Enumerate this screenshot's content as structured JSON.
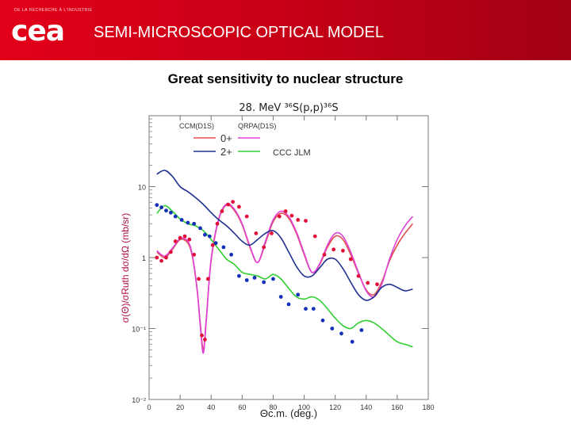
{
  "header": {
    "logo_tagline": "DE LA RECHERCHE À L'INDUSTRIE",
    "logo_text": "cea",
    "title": "SEMI-MICROSCOPIC OPTICAL MODEL"
  },
  "subtitle": "Great sensitivity to nuclear structure",
  "colors": {
    "header_red": "#e2001a",
    "ccm_0plus": "#e05050",
    "qrpa_0plus": "#e040d8",
    "ccm_2plus": "#203090",
    "qrpa_2plus": "#30d030",
    "data_0plus": "#e0103a",
    "data_2plus": "#1530b8"
  },
  "chart_data": {
    "type": "line",
    "title": "28. MeV ³⁶S(p,p)³⁶S",
    "xlabel": "Θc.m. (deg.)",
    "ylabel": "σ(Θ)/σRuth   dσ/dΩ (mb/sr)",
    "xlim": [
      0,
      180
    ],
    "ylim": [
      0.01,
      100
    ],
    "yscale": "log",
    "x_ticks": [
      "0",
      "20",
      "40",
      "60",
      "80",
      "100",
      "120",
      "140",
      "160",
      "180"
    ],
    "y_ticks": [
      {
        "label": "10",
        "value": 10
      },
      {
        "label": "1",
        "value": 1
      },
      {
        "label": "10⁻¹",
        "value": 0.1
      },
      {
        "label": "10⁻²",
        "value": 0.01
      }
    ],
    "legend": {
      "header_left": "CCM(D1S)",
      "header_right": "QRPA(D1S)",
      "row1": "0+",
      "row2": "2+",
      "right_label": "CCC JLM"
    },
    "series": [
      {
        "name": "0+ CCM(D1S)",
        "color": "#e05050",
        "x": [
          5,
          10,
          15,
          20,
          25,
          28,
          31,
          33,
          35,
          37,
          40,
          45,
          50,
          55,
          60,
          65,
          70,
          75,
          80,
          85,
          90,
          95,
          100,
          105,
          110,
          115,
          120,
          125,
          130,
          135,
          140,
          145,
          150,
          155,
          160,
          165,
          170
        ],
        "y": [
          1.2,
          1.0,
          1.3,
          1.8,
          1.6,
          1.0,
          0.35,
          0.12,
          0.05,
          0.15,
          0.9,
          3.5,
          5.5,
          4.6,
          2.9,
          1.4,
          0.85,
          1.6,
          3.2,
          4.2,
          3.6,
          2.2,
          1.1,
          0.62,
          0.8,
          1.4,
          2.0,
          1.8,
          1.1,
          0.6,
          0.35,
          0.3,
          0.45,
          0.9,
          1.5,
          2.2,
          3.0
        ]
      },
      {
        "name": "0+ QRPA(D1S)",
        "color": "#e040d8",
        "x": [
          5,
          10,
          15,
          20,
          25,
          28,
          31,
          33,
          35,
          37,
          40,
          45,
          50,
          55,
          60,
          65,
          70,
          75,
          80,
          85,
          90,
          95,
          100,
          105,
          110,
          115,
          120,
          125,
          130,
          135,
          140,
          145,
          150,
          155,
          160,
          165,
          170
        ],
        "y": [
          1.25,
          1.05,
          1.35,
          1.85,
          1.7,
          1.05,
          0.35,
          0.11,
          0.045,
          0.14,
          0.95,
          3.6,
          5.7,
          4.8,
          3.0,
          1.45,
          0.85,
          1.7,
          3.4,
          4.5,
          3.8,
          2.3,
          1.15,
          0.62,
          0.82,
          1.5,
          2.2,
          2.0,
          1.2,
          0.62,
          0.34,
          0.28,
          0.42,
          0.95,
          1.8,
          2.8,
          3.8
        ]
      },
      {
        "name": "2+ CCM(D1S)",
        "color": "#203090",
        "x": [
          5,
          10,
          15,
          20,
          25,
          30,
          35,
          40,
          45,
          50,
          55,
          60,
          65,
          70,
          75,
          80,
          85,
          90,
          95,
          100,
          105,
          110,
          115,
          120,
          125,
          130,
          135,
          140,
          145,
          150,
          155,
          160,
          165,
          170
        ],
        "y": [
          15,
          17,
          14,
          10,
          8.5,
          7.0,
          5.6,
          4.3,
          3.4,
          2.8,
          2.2,
          1.7,
          1.5,
          1.8,
          2.2,
          2.4,
          1.9,
          1.2,
          0.75,
          0.55,
          0.55,
          0.72,
          0.95,
          0.95,
          0.7,
          0.45,
          0.3,
          0.25,
          0.28,
          0.38,
          0.42,
          0.38,
          0.34,
          0.36
        ]
      },
      {
        "name": "2+ CCC JLM",
        "color": "#30d030",
        "x": [
          5,
          10,
          15,
          20,
          25,
          30,
          35,
          40,
          45,
          50,
          55,
          60,
          65,
          70,
          75,
          80,
          85,
          90,
          95,
          100,
          105,
          110,
          115,
          120,
          125,
          130,
          135,
          140,
          145,
          150,
          155,
          160,
          165,
          170
        ],
        "y": [
          4.2,
          5.4,
          4.5,
          3.5,
          3.0,
          2.8,
          2.4,
          1.8,
          1.3,
          0.95,
          0.8,
          0.62,
          0.58,
          0.55,
          0.5,
          0.58,
          0.5,
          0.37,
          0.28,
          0.26,
          0.28,
          0.25,
          0.19,
          0.14,
          0.11,
          0.1,
          0.12,
          0.13,
          0.12,
          0.1,
          0.08,
          0.065,
          0.06,
          0.055
        ]
      }
    ],
    "points": [
      {
        "name": "data 0+",
        "color": "#e0103a",
        "x": [
          5,
          8,
          11,
          14,
          17,
          20,
          23,
          26,
          29,
          32,
          34,
          36,
          38,
          41,
          44,
          47,
          51,
          54,
          58,
          63,
          69,
          74,
          79,
          84,
          88,
          92,
          96,
          101,
          107,
          113,
          119,
          125,
          130,
          135,
          141,
          147
        ],
        "y": [
          1.0,
          0.9,
          1.0,
          1.2,
          1.7,
          1.9,
          2.0,
          1.8,
          1.1,
          0.5,
          0.08,
          0.07,
          0.5,
          1.5,
          3.0,
          4.5,
          5.6,
          6.1,
          5.2,
          3.8,
          2.2,
          1.4,
          2.2,
          3.8,
          4.5,
          3.9,
          3.4,
          3.3,
          2.0,
          1.1,
          1.3,
          1.25,
          0.95,
          0.55,
          0.44,
          0.42
        ]
      },
      {
        "name": "data 2+",
        "color": "#1530b8",
        "x": [
          5,
          8,
          11,
          14,
          17,
          21,
          25,
          29,
          33,
          36,
          39,
          43,
          48,
          53,
          58,
          63,
          68,
          74,
          80,
          85,
          90,
          96,
          101,
          106,
          112,
          118,
          124,
          131,
          137
        ],
        "y": [
          5.5,
          5.1,
          4.6,
          4.3,
          3.8,
          3.4,
          3.1,
          3.0,
          2.6,
          2.1,
          2.0,
          1.6,
          1.4,
          1.1,
          0.55,
          0.48,
          0.52,
          0.45,
          0.5,
          0.28,
          0.22,
          0.3,
          0.19,
          0.19,
          0.13,
          0.1,
          0.085,
          0.065,
          0.095
        ]
      }
    ]
  }
}
